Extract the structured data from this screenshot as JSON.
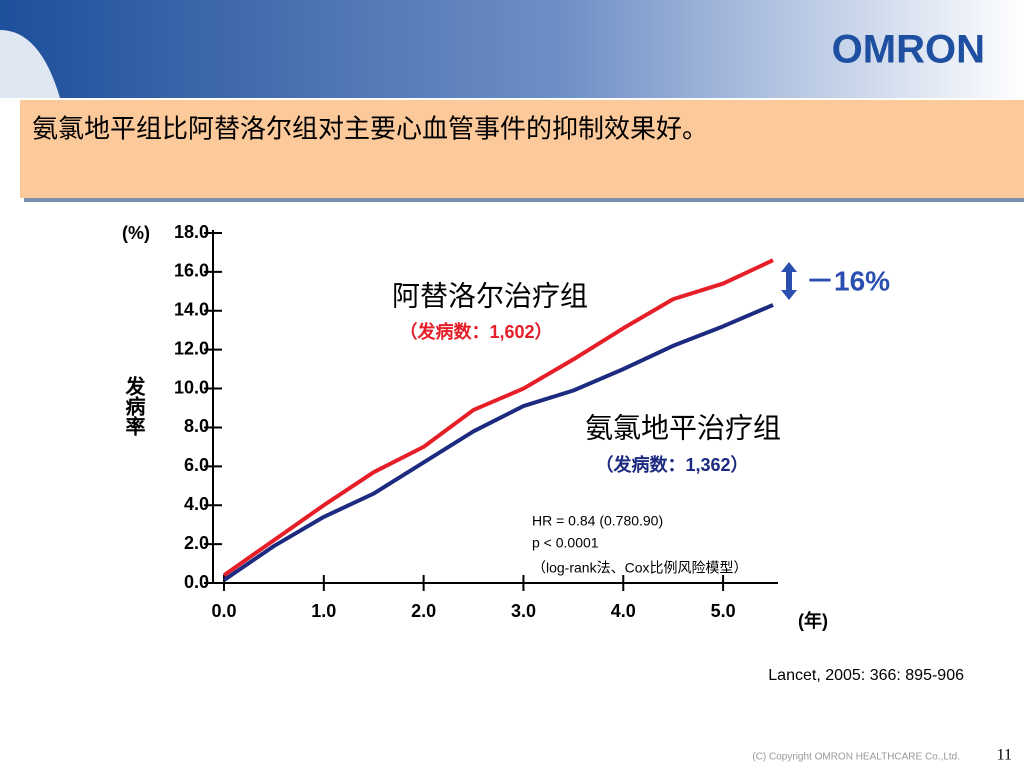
{
  "slide": {
    "logo": "OMRON",
    "heading": "氨氯地平组比阿替洛尔组对主要心血管事件的抑制效果好。",
    "citation": "Lancet, 2005: 366: 895-906",
    "copyright": "(C) Copyright OMRON HEALTHCARE Co.,Ltd.",
    "page": "11"
  },
  "chart_data": {
    "type": "line",
    "x": [
      0,
      0.5,
      1,
      1.5,
      2,
      2.5,
      3,
      3.5,
      4,
      4.5,
      5,
      5.5
    ],
    "series": [
      {
        "name": "阿替洛尔治疗组",
        "color": "#e61e28",
        "values": [
          0.4,
          2.2,
          4.0,
          5.7,
          7.0,
          8.9,
          10.0,
          11.5,
          13.1,
          14.6,
          15.4,
          16.6
        ]
      },
      {
        "name": "氨氯地平治疗组",
        "color": "#1c2a80",
        "values": [
          0.15,
          1.9,
          3.4,
          4.6,
          6.2,
          7.8,
          9.1,
          9.9,
          11.0,
          12.2,
          13.2,
          14.3
        ]
      }
    ],
    "series_notes": [
      "（发病数：1,602）",
      "（发病数：1,362）"
    ],
    "xlim": [
      0,
      5.5
    ],
    "xticks": [
      {
        "value": 0,
        "label": "0.0"
      },
      {
        "value": 1,
        "label": "1.0"
      },
      {
        "value": 2,
        "label": "2.0"
      },
      {
        "value": 3,
        "label": "3.0"
      },
      {
        "value": 4,
        "label": "4.0"
      },
      {
        "value": 5,
        "label": "5.0"
      }
    ],
    "ylim": [
      0,
      18
    ],
    "yticks": [
      {
        "value": 0,
        "label": "0.0"
      },
      {
        "value": 2,
        "label": "2.0"
      },
      {
        "value": 4,
        "label": "4.0"
      },
      {
        "value": 6,
        "label": "6.0"
      },
      {
        "value": 8,
        "label": "8.0"
      },
      {
        "value": 10,
        "label": "10.0"
      },
      {
        "value": 12,
        "label": "12.0"
      },
      {
        "value": 14,
        "label": "14.0"
      },
      {
        "value": 16,
        "label": "16.0"
      },
      {
        "value": 18,
        "label": "18.0"
      }
    ],
    "y_unit": "(%)",
    "ylabel": "发病率",
    "x_unit": "(年)",
    "difference": "－16%",
    "stats": [
      "HR = 0.84 (0.780.90)",
      "p < 0.0001",
      "（log-rank法、Cox比例风险模型）"
    ]
  }
}
